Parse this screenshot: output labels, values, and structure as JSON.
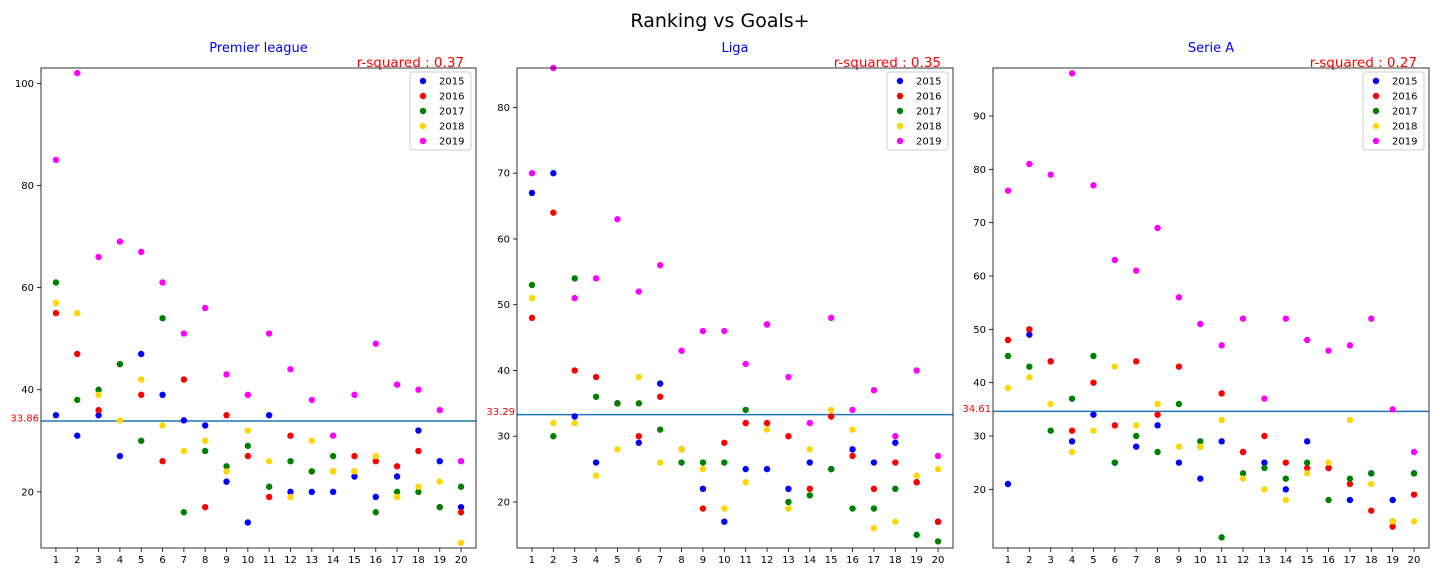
{
  "figure": {
    "title": "Ranking vs Goals+"
  },
  "colors": {
    "title_color": "#0000ff",
    "rsq_color": "#ff0000",
    "mean_line": "#1f77b4",
    "mean_label": "#ff0000",
    "series": {
      "2015": "#0000ff",
      "2016": "#ff0000",
      "2017": "#008000",
      "2018": "#ffd700",
      "2019": "#ff00ff"
    }
  },
  "chart_data": [
    {
      "type": "scatter",
      "title": "Premier league",
      "r_squared_text": "r-squared : 0.37",
      "mean_label": "33.86",
      "mean": 33.86,
      "x": [
        1,
        2,
        3,
        4,
        5,
        6,
        7,
        8,
        9,
        10,
        11,
        12,
        13,
        14,
        15,
        16,
        17,
        18,
        19,
        20
      ],
      "xlim": [
        0.3,
        20.7
      ],
      "ylim": [
        9,
        103
      ],
      "yticks": [
        20,
        40,
        60,
        80,
        100
      ],
      "legend_position": "upper right",
      "series": [
        {
          "name": "2015",
          "values": [
            35,
            31,
            35,
            27,
            47,
            39,
            34,
            33,
            22,
            14,
            35,
            20,
            20,
            20,
            23,
            19,
            23,
            32,
            26,
            17
          ]
        },
        {
          "name": "2016",
          "values": [
            55,
            47,
            36,
            45,
            39,
            26,
            42,
            17,
            35,
            27,
            19,
            31,
            24,
            24,
            27,
            26,
            25,
            28,
            17,
            16
          ]
        },
        {
          "name": "2017",
          "values": [
            61,
            38,
            40,
            45,
            30,
            54,
            16,
            28,
            25,
            29,
            21,
            26,
            24,
            27,
            24,
            16,
            20,
            20,
            17,
            21
          ]
        },
        {
          "name": "2018",
          "values": [
            57,
            55,
            39,
            34,
            42,
            33,
            28,
            30,
            24,
            32,
            26,
            19,
            30,
            24,
            24,
            27,
            19,
            21,
            22,
            10
          ]
        },
        {
          "name": "2019",
          "values": [
            85,
            102,
            66,
            69,
            67,
            61,
            51,
            56,
            43,
            39,
            51,
            44,
            38,
            31,
            39,
            49,
            41,
            40,
            36,
            26
          ]
        }
      ]
    },
    {
      "type": "scatter",
      "title": "Liga",
      "r_squared_text": "r-squared : 0.35",
      "mean_label": "33.29",
      "mean": 33.29,
      "x": [
        1,
        2,
        3,
        4,
        5,
        6,
        7,
        8,
        9,
        10,
        11,
        12,
        13,
        14,
        15,
        16,
        17,
        18,
        19,
        20
      ],
      "xlim": [
        0.3,
        20.7
      ],
      "ylim": [
        13,
        86
      ],
      "yticks": [
        20,
        30,
        40,
        50,
        60,
        70,
        80
      ],
      "legend_position": "upper right",
      "series": [
        {
          "name": "2015",
          "values": [
            67,
            70,
            33,
            26,
            35,
            29,
            38,
            28,
            22,
            17,
            25,
            25,
            22,
            26,
            25,
            28,
            26,
            29,
            23,
            17
          ]
        },
        {
          "name": "2016",
          "values": [
            48,
            64,
            40,
            39,
            35,
            30,
            36,
            28,
            19,
            29,
            32,
            32,
            30,
            22,
            33,
            27,
            22,
            26,
            23,
            17
          ]
        },
        {
          "name": "2017",
          "values": [
            53,
            30,
            54,
            36,
            35,
            35,
            31,
            26,
            26,
            26,
            34,
            47,
            20,
            21,
            25,
            19,
            19,
            22,
            15,
            14
          ]
        },
        {
          "name": "2018",
          "values": [
            51,
            32,
            32,
            24,
            28,
            39,
            26,
            28,
            25,
            19,
            23,
            31,
            19,
            28,
            34,
            31,
            16,
            17,
            24,
            25
          ]
        },
        {
          "name": "2019",
          "values": [
            70,
            86,
            51,
            54,
            63,
            52,
            56,
            43,
            46,
            46,
            41,
            47,
            39,
            32,
            48,
            34,
            37,
            30,
            40,
            27
          ]
        }
      ]
    },
    {
      "type": "scatter",
      "title": "Serie A",
      "r_squared_text": "r-squared : 0.27",
      "mean_label": "34.61",
      "mean": 34.61,
      "x": [
        1,
        2,
        3,
        4,
        5,
        6,
        7,
        8,
        9,
        10,
        11,
        12,
        13,
        14,
        15,
        16,
        17,
        18,
        19,
        20
      ],
      "xlim": [
        0.3,
        20.7
      ],
      "ylim": [
        9,
        99
      ],
      "yticks": [
        20,
        30,
        40,
        50,
        60,
        70,
        80,
        90
      ],
      "legend_position": "upper right",
      "series": [
        {
          "name": "2015",
          "values": [
            21,
            49,
            44,
            29,
            34,
            25,
            28,
            32,
            25,
            22,
            29,
            27,
            25,
            20,
            29,
            24,
            18,
            23,
            18,
            23
          ]
        },
        {
          "name": "2016",
          "values": [
            48,
            50,
            44,
            31,
            40,
            32,
            44,
            34,
            43,
            28,
            38,
            27,
            30,
            25,
            24,
            24,
            21,
            16,
            13,
            19
          ]
        },
        {
          "name": "2017",
          "values": [
            45,
            43,
            31,
            37,
            45,
            25,
            30,
            27,
            36,
            29,
            11,
            23,
            24,
            22,
            25,
            18,
            22,
            23,
            14,
            23
          ]
        },
        {
          "name": "2018",
          "values": [
            39,
            41,
            36,
            27,
            31,
            43,
            32,
            36,
            28,
            28,
            33,
            22,
            20,
            18,
            23,
            25,
            33,
            21,
            14,
            14
          ]
        },
        {
          "name": "2019",
          "values": [
            76,
            81,
            79,
            98,
            77,
            63,
            61,
            69,
            56,
            51,
            47,
            52,
            37,
            52,
            48,
            46,
            47,
            52,
            35,
            27
          ]
        }
      ]
    }
  ]
}
